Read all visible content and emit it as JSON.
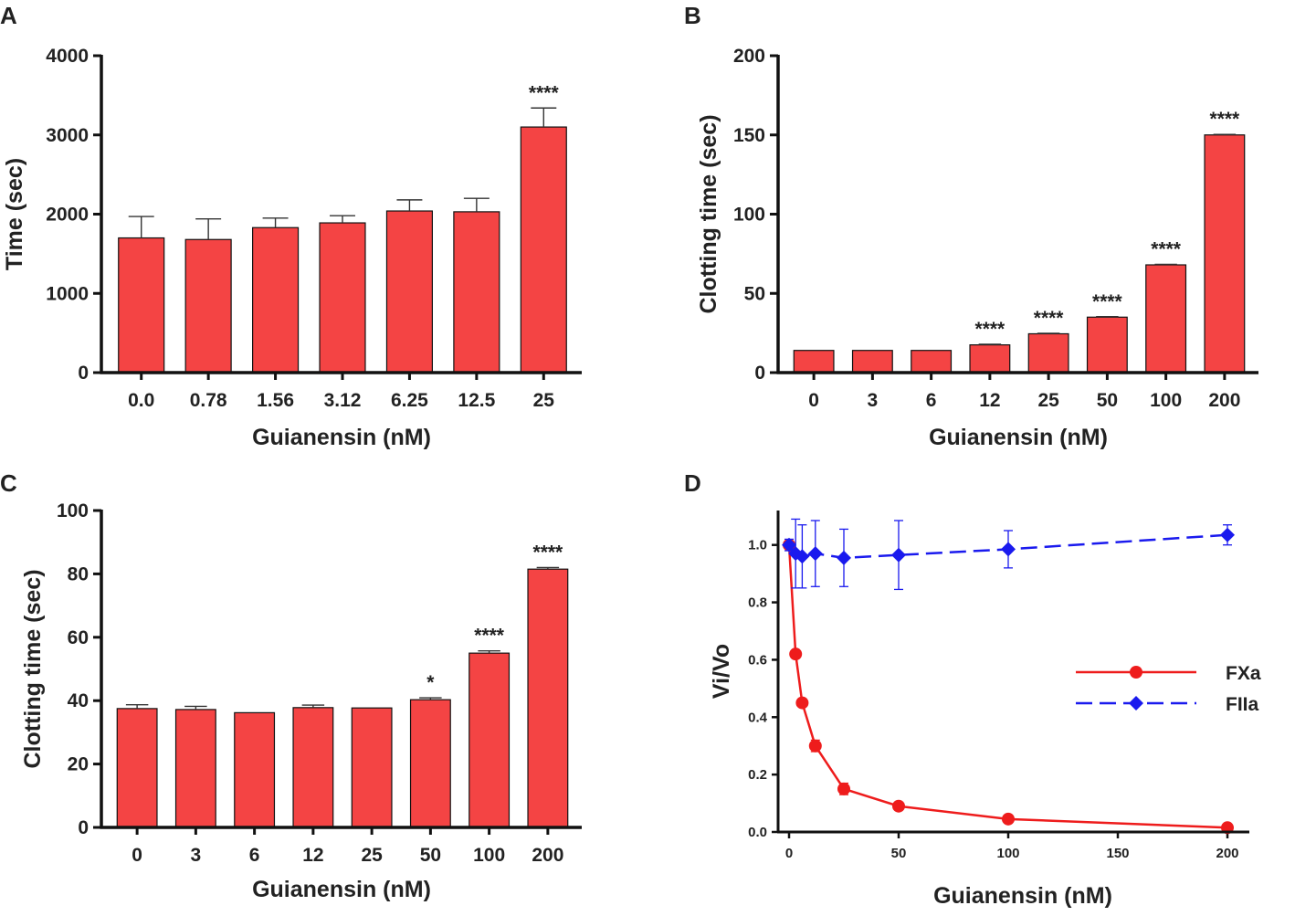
{
  "panels": [
    {
      "letter": "A",
      "chart_data": {
        "type": "bar",
        "title": "",
        "xlabel": "Guianensin (nM)",
        "ylabel": "Time (sec)",
        "categories": [
          "0.0",
          "0.78",
          "1.56",
          "3.12",
          "6.25",
          "12.5",
          "25"
        ],
        "values": [
          1700,
          1680,
          1830,
          1890,
          2040,
          2030,
          3100
        ],
        "errors": [
          270,
          260,
          120,
          90,
          140,
          170,
          240
        ],
        "significance": [
          "",
          "",
          "",
          "",
          "",
          "",
          "****"
        ],
        "ylim": [
          0,
          4000
        ],
        "yticks": [
          0,
          1000,
          2000,
          3000,
          4000
        ],
        "bar_color": "#f44444"
      }
    },
    {
      "letter": "B",
      "chart_data": {
        "type": "bar",
        "title": "",
        "xlabel": "Guianensin (nM)",
        "ylabel": "Clotting time (sec)",
        "categories": [
          "0",
          "3",
          "6",
          "12",
          "25",
          "50",
          "100",
          "200"
        ],
        "values": [
          14,
          14,
          14,
          17.5,
          24.5,
          35,
          68,
          150
        ],
        "errors": [
          0,
          0,
          0,
          0.4,
          0.3,
          0.3,
          0.3,
          0.3
        ],
        "significance": [
          "",
          "",
          "",
          "****",
          "****",
          "****",
          "****",
          "****"
        ],
        "ylim": [
          0,
          200
        ],
        "yticks": [
          0,
          50,
          100,
          150,
          200
        ],
        "bar_color": "#f44444"
      }
    },
    {
      "letter": "C",
      "chart_data": {
        "type": "bar",
        "title": "",
        "xlabel": "Guianensin (nM)",
        "ylabel": "Clotting time (sec)",
        "categories": [
          "0",
          "3",
          "6",
          "12",
          "25",
          "50",
          "100",
          "200"
        ],
        "values": [
          37.5,
          37.2,
          36.2,
          37.8,
          37.7,
          40.3,
          55,
          81.5
        ],
        "errors": [
          1.2,
          1.0,
          0,
          0.8,
          0,
          0.6,
          0.7,
          0.5
        ],
        "significance": [
          "",
          "",
          "",
          "",
          "",
          "*",
          "****",
          "****"
        ],
        "ylim": [
          0,
          100
        ],
        "yticks": [
          0,
          20,
          40,
          60,
          80,
          100
        ],
        "bar_color": "#f44444"
      }
    },
    {
      "letter": "D",
      "chart_data": {
        "type": "line",
        "title": "",
        "xlabel": "Guianensin (nM)",
        "ylabel": "Vi/Vo",
        "xlim": [
          0,
          210
        ],
        "ylim": [
          0,
          1.12
        ],
        "xticks": [
          0,
          50,
          100,
          150,
          200
        ],
        "yticks": [
          0.0,
          0.2,
          0.4,
          0.6,
          0.8,
          1.0
        ],
        "ytick_labels": [
          "0.0",
          "0.2",
          "0.4",
          "0.6",
          "0.8",
          "1.0"
        ],
        "legend_position": "center-right",
        "series": [
          {
            "name": "FXa",
            "color": "#ee1c1c",
            "marker": "circle",
            "dash": "solid",
            "x": [
              0,
              3,
              6,
              12,
              25,
              50,
              100,
              200
            ],
            "y": [
              1.0,
              0.62,
              0.45,
              0.3,
              0.15,
              0.09,
              0.045,
              0.015
            ],
            "errors": [
              0.01,
              0.01,
              0.01,
              0.02,
              0.02,
              0.01,
              0.005,
              0.005
            ]
          },
          {
            "name": "FIIa",
            "color": "#1a1aee",
            "marker": "diamond",
            "dash": "dashed",
            "x": [
              0,
              3,
              6,
              12,
              25,
              50,
              100,
              200
            ],
            "y": [
              1.0,
              0.97,
              0.96,
              0.97,
              0.955,
              0.965,
              0.985,
              1.035
            ],
            "errors": [
              0.02,
              0.12,
              0.11,
              0.115,
              0.1,
              0.12,
              0.065,
              0.035
            ]
          }
        ]
      }
    }
  ]
}
